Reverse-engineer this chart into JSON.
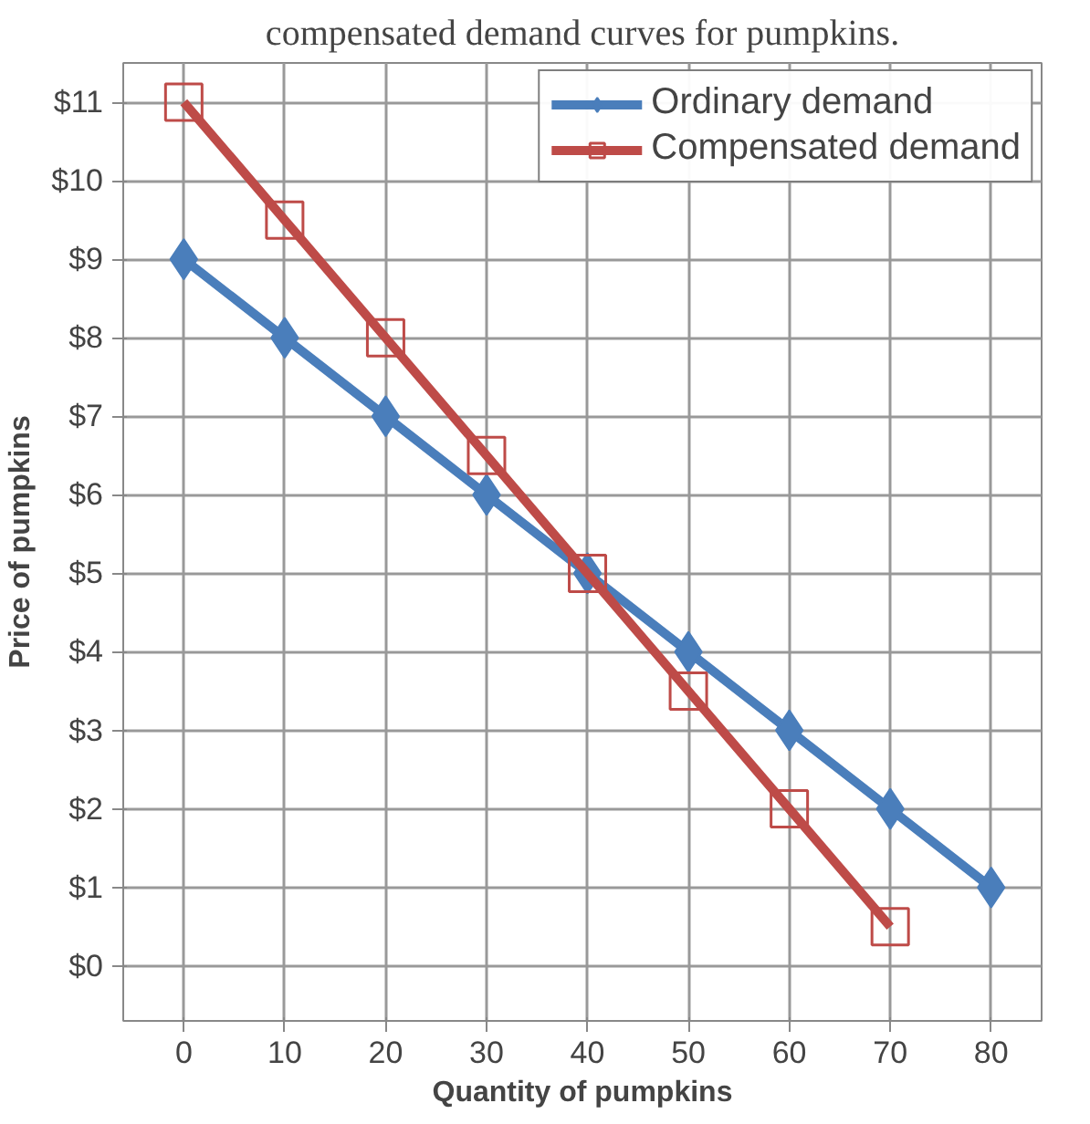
{
  "chart_data": {
    "type": "line",
    "title": "compensated demand curves for pumpkins.",
    "xlabel": "Quantity of pumpkins",
    "ylabel": "Price of pumpkins",
    "series": [
      {
        "name": "Ordinary demand",
        "color": "#4a7ebb",
        "marker": "diamond",
        "x": [
          0,
          10,
          20,
          30,
          40,
          50,
          60,
          70,
          80
        ],
        "values": [
          9,
          8,
          7,
          6,
          5,
          4,
          3,
          2,
          1
        ]
      },
      {
        "name": "Compensated demand",
        "color": "#be4b48",
        "marker": "square",
        "x": [
          0,
          10,
          20,
          30,
          40,
          50,
          60,
          70
        ],
        "values": [
          11,
          9.5,
          8,
          6.5,
          5,
          3.5,
          2,
          0.5
        ]
      }
    ],
    "xlim": [
      -6,
      85
    ],
    "ylim": [
      -0.7,
      11.5
    ],
    "xticks": [
      0,
      10,
      20,
      30,
      40,
      50,
      60,
      70,
      80
    ],
    "yticks": [
      {
        "value": 0,
        "label": "$0"
      },
      {
        "value": 1,
        "label": "$1"
      },
      {
        "value": 2,
        "label": "$2"
      },
      {
        "value": 3,
        "label": "$3"
      },
      {
        "value": 4,
        "label": "$4"
      },
      {
        "value": 5,
        "label": "$5"
      },
      {
        "value": 6,
        "label": "$6"
      },
      {
        "value": 7,
        "label": "$7"
      },
      {
        "value": 8,
        "label": "$8"
      },
      {
        "value": 9,
        "label": "$9"
      },
      {
        "value": 10,
        "label": "$10"
      },
      {
        "value": 11,
        "label": "$11"
      }
    ],
    "grid": true,
    "legend": "top right",
    "line_style": "solid"
  }
}
